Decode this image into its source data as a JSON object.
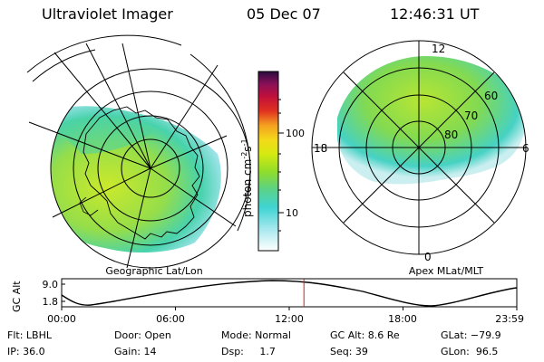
{
  "header": {
    "instrument": "Ultraviolet Imager",
    "date": "05 Dec 07",
    "time": "12:46:31 UT"
  },
  "left_map": {
    "label": "Geographic Lat/Lon"
  },
  "colorbar": {
    "unit_label": "photon cm",
    "unit_exp1": "-2",
    "unit_s": "s",
    "unit_exp2": "-1",
    "ticks": [
      "100",
      "10"
    ]
  },
  "right_map": {
    "label": "Apex MLat/MLT",
    "mlt_labels": {
      "top": "12",
      "right": "6",
      "bottom": "0",
      "left": "18"
    },
    "lat_labels": [
      "60",
      "70",
      "80"
    ]
  },
  "orbit": {
    "ylabel": "GC Alt",
    "y_ticks": [
      "9.0",
      "1.8"
    ],
    "x_ticks": [
      "00:00",
      "06:00",
      "12:00",
      "18:00",
      "23:59"
    ],
    "marker_time_hours": 12.775
  },
  "footer": {
    "row1": [
      "Flt: LBHL",
      "Door: Open",
      "Mode: Normal",
      "GC Alt: 8.6 Re",
      "GLat: −79.9"
    ],
    "row2": [
      "IP: 36.0",
      "Gain: 14",
      "Dsp:     1.7",
      "Seq: 39",
      "GLon:  96.5"
    ]
  },
  "colors": {
    "grid": "#000000",
    "marker": "#cc2222"
  }
}
